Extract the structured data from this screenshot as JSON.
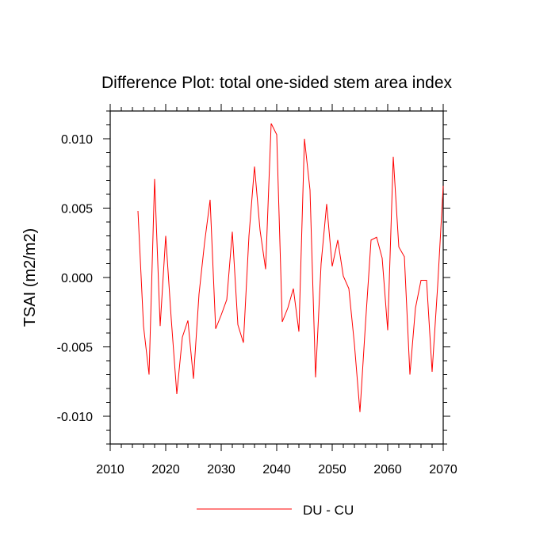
{
  "chart_data": {
    "type": "line",
    "title": "Difference Plot: total one-sided stem area index",
    "xlabel": "",
    "ylabel": "TSAI  (m2/m2)",
    "xlim": [
      2010,
      2070
    ],
    "ylim": [
      -0.012,
      0.012
    ],
    "xticks": [
      2010,
      2020,
      2030,
      2040,
      2050,
      2060,
      2070
    ],
    "xtick_labels": [
      "2010",
      "2020",
      "2030",
      "2040",
      "2050",
      "2060",
      "2070"
    ],
    "yticks": [
      -0.01,
      -0.005,
      0.0,
      0.005,
      0.01
    ],
    "ytick_labels": [
      "-0.010",
      "-0.005",
      "0.000",
      "0.005",
      "0.010"
    ],
    "grid": false,
    "legend_position": "bottom-center",
    "series": [
      {
        "name": "DU - CU",
        "color": "#ff0000",
        "x": [
          2015,
          2016,
          2017,
          2018,
          2019,
          2020,
          2021,
          2022,
          2023,
          2024,
          2025,
          2026,
          2027,
          2028,
          2029,
          2030,
          2031,
          2032,
          2033,
          2034,
          2035,
          2036,
          2037,
          2038,
          2039,
          2040,
          2041,
          2042,
          2043,
          2044,
          2045,
          2046,
          2047,
          2048,
          2049,
          2050,
          2051,
          2052,
          2053,
          2054,
          2055,
          2056,
          2057,
          2058,
          2059,
          2060,
          2061,
          2062,
          2063,
          2064,
          2065,
          2066,
          2067,
          2068,
          2069,
          2070
        ],
        "y": [
          0.0048,
          -0.0035,
          -0.007,
          0.0071,
          -0.0035,
          0.003,
          -0.003,
          -0.0084,
          -0.0043,
          -0.0031,
          -0.0073,
          -0.0012,
          0.0025,
          0.0056,
          -0.0037,
          -0.0027,
          -0.0016,
          0.0033,
          -0.0034,
          -0.0047,
          0.003,
          0.008,
          0.0034,
          0.0006,
          0.0111,
          0.0103,
          -0.0032,
          -0.0022,
          -0.0008,
          -0.0039,
          0.01,
          0.0063,
          -0.0072,
          0.001,
          0.0053,
          0.0008,
          0.0027,
          0.0001,
          -0.0008,
          -0.0048,
          -0.0097,
          -0.0033,
          0.0027,
          0.0029,
          0.0014,
          -0.0038,
          0.0087,
          0.0022,
          0.0015,
          -0.007,
          -0.0022,
          -0.0002,
          -0.0002,
          -0.0068,
          -0.0006,
          0.0066
        ]
      }
    ]
  }
}
